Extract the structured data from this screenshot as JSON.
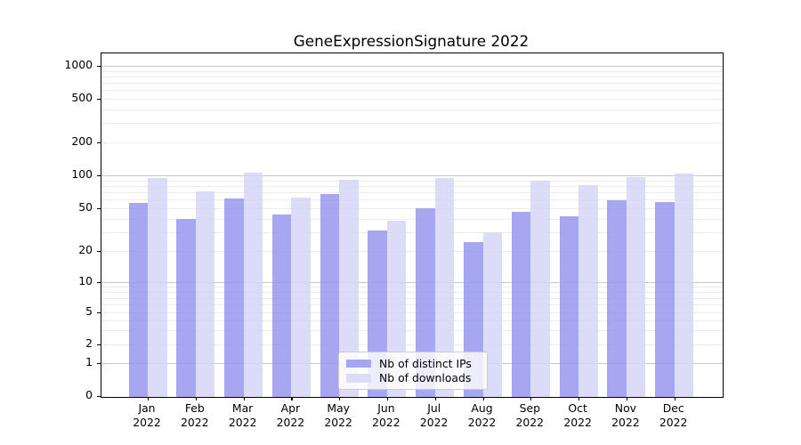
{
  "title": "GeneExpressionSignature 2022",
  "chart_data": {
    "type": "bar",
    "title": "GeneExpressionSignature 2022",
    "categories": [
      "Jan",
      "Feb",
      "Mar",
      "Apr",
      "May",
      "Jun",
      "Jul",
      "Aug",
      "Sep",
      "Oct",
      "Nov",
      "Dec"
    ],
    "year": "2022",
    "series": [
      {
        "name": "Nb of distinct IPs",
        "values": [
          56,
          40,
          61,
          44,
          68,
          31,
          50,
          24,
          46,
          42,
          59,
          57
        ]
      },
      {
        "name": "Nb of downloads",
        "values": [
          95,
          71,
          106,
          63,
          91,
          38,
          94,
          30,
          90,
          81,
          97,
          103
        ]
      }
    ],
    "yscale": "symlog",
    "yticks": [
      0,
      1,
      2,
      5,
      10,
      20,
      50,
      100,
      200,
      500,
      1000
    ],
    "ylim": [
      0,
      1100
    ],
    "xlabel": "",
    "ylabel": "",
    "grid": "on",
    "legend_position": "lower center"
  },
  "colors": {
    "bar_distinct_ips": "rgba(150,150,238,0.85)",
    "bar_downloads": "rgba(214,214,248,0.85)",
    "legend_swatch_distinct_ips": "#a6a6f0",
    "legend_swatch_downloads": "#dcdcf9",
    "grid_major": "#c8c8c8",
    "grid_minor": "#ececec",
    "spine": "#000000",
    "text": "#000000"
  },
  "legend": {
    "items": [
      {
        "label": "Nb of distinct IPs"
      },
      {
        "label": "Nb of downloads"
      }
    ]
  }
}
